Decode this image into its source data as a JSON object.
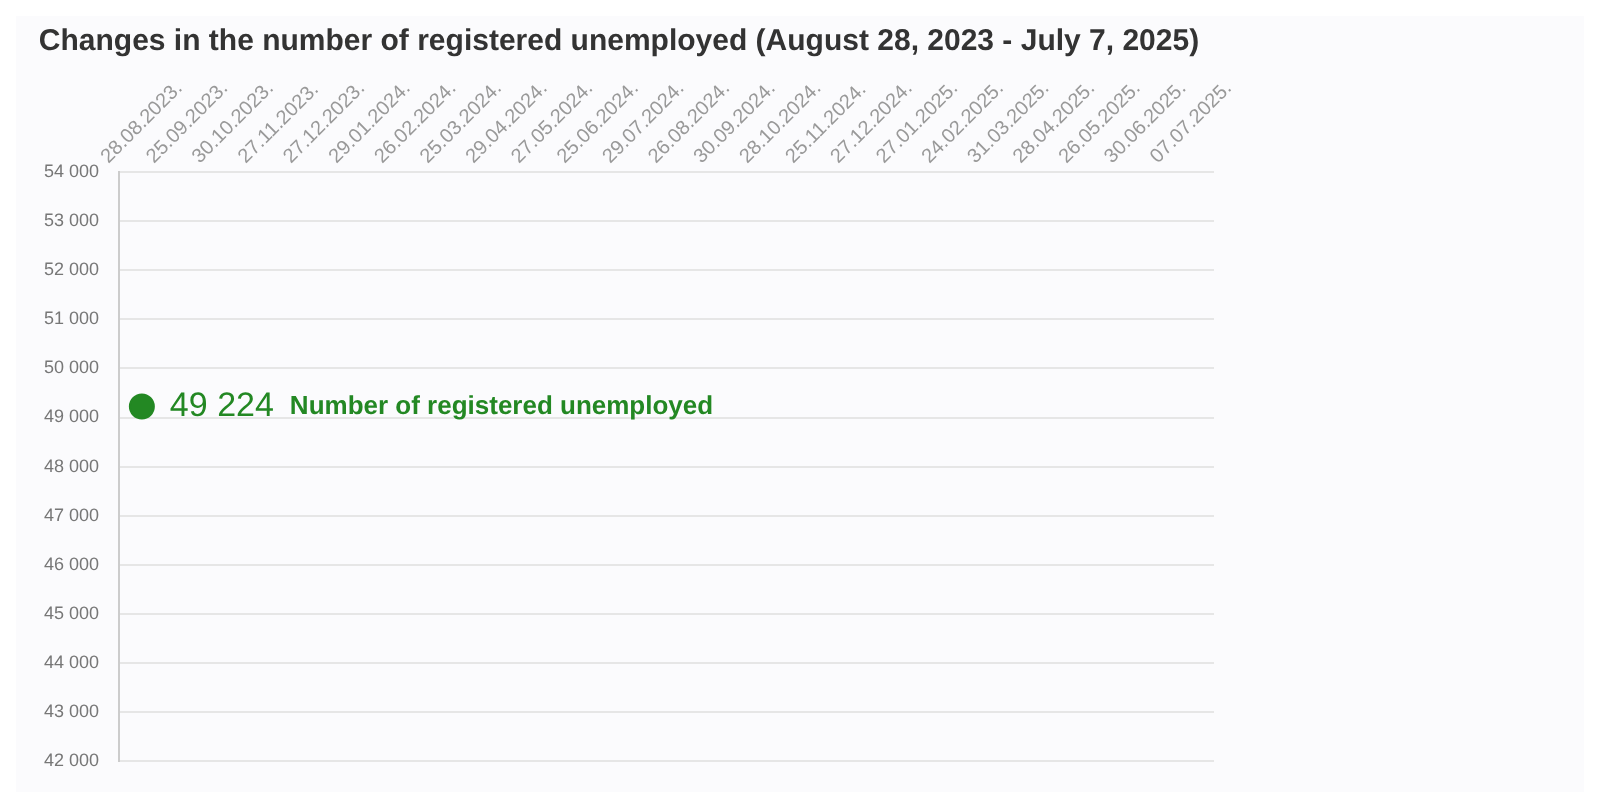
{
  "chart_data": {
    "type": "line",
    "title": "Changes in the number of registered unemployed (August 28, 2023 - July 7, 2025)",
    "categories": [
      "28.08.2023.",
      "25.09.2023.",
      "30.10.2023.",
      "27.11.2023.",
      "27.12.2023.",
      "29.01.2024.",
      "26.02.2024.",
      "25.03.2024.",
      "29.04.2024.",
      "27.05.2024.",
      "25.06.2024.",
      "29.07.2024.",
      "26.08.2024.",
      "30.09.2024.",
      "28.10.2024.",
      "25.11.2024.",
      "27.12.2024.",
      "27.01.2025.",
      "24.02.2025.",
      "31.03.2025.",
      "28.04.2025.",
      "26.05.2025.",
      "30.06.2025.",
      "07.07.2025."
    ],
    "series": [
      {
        "name": "Number of registered unemployed",
        "color": "#238823",
        "values": [
          49224,
          null,
          null,
          null,
          null,
          null,
          null,
          null,
          null,
          null,
          null,
          null,
          null,
          null,
          null,
          null,
          null,
          null,
          null,
          null,
          null,
          null,
          null,
          null
        ],
        "value_labels": [
          "49 224",
          null,
          null,
          null,
          null,
          null,
          null,
          null,
          null,
          null,
          null,
          null,
          null,
          null,
          null,
          null,
          null,
          null,
          null,
          null,
          null,
          null,
          null,
          null
        ]
      }
    ],
    "ylim": [
      42000,
      54000
    ],
    "yticks": [
      {
        "value": 42000,
        "label": "42 000"
      },
      {
        "value": 43000,
        "label": "43 000"
      },
      {
        "value": 44000,
        "label": "44 000"
      },
      {
        "value": 45000,
        "label": "45 000"
      },
      {
        "value": 46000,
        "label": "46 000"
      },
      {
        "value": 47000,
        "label": "47 000"
      },
      {
        "value": 48000,
        "label": "48 000"
      },
      {
        "value": 49000,
        "label": "49 000"
      },
      {
        "value": 50000,
        "label": "50 000"
      },
      {
        "value": 51000,
        "label": "51 000"
      },
      {
        "value": 52000,
        "label": "52 000"
      },
      {
        "value": 53000,
        "label": "53 000"
      },
      {
        "value": 54000,
        "label": "54 000"
      }
    ],
    "grid": "y",
    "legend": false,
    "marker": "circle"
  }
}
